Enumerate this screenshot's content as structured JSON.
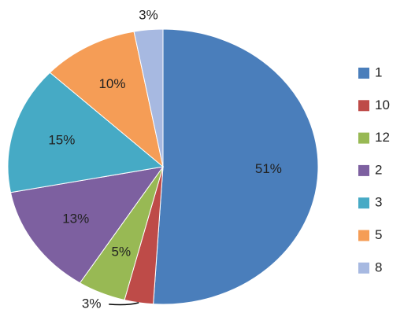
{
  "chart_data": {
    "type": "pie",
    "categories": [
      "1",
      "10",
      "12",
      "2",
      "3",
      "5",
      "8"
    ],
    "values": [
      51,
      3,
      5,
      13,
      15,
      10,
      3
    ],
    "value_labels": [
      "51%",
      "3%",
      "5%",
      "13%",
      "15%",
      "10%",
      "3%"
    ],
    "colors": [
      "#4a7ebb",
      "#be4b48",
      "#98b954",
      "#7d60a0",
      "#46aac5",
      "#f59d56",
      "#a7b9e1"
    ],
    "legend": "right"
  }
}
